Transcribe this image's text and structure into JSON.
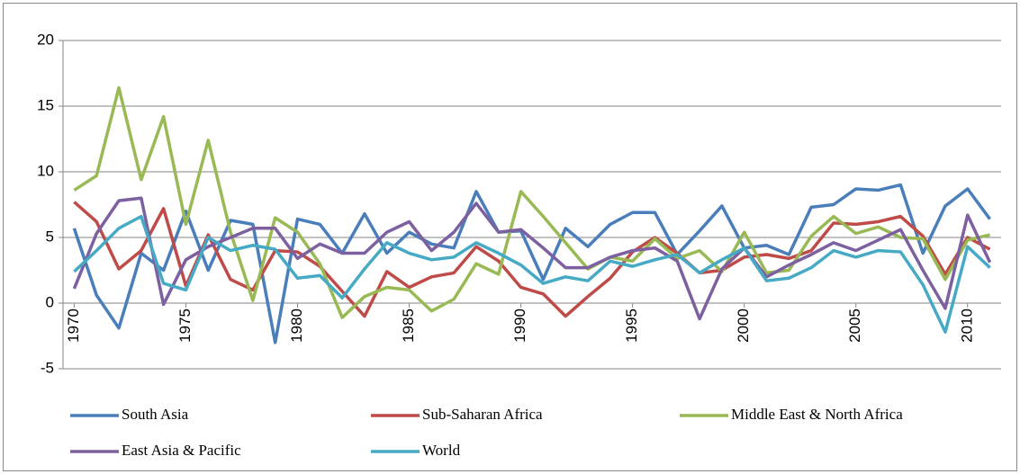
{
  "chart_data": {
    "type": "line",
    "x": [
      1970,
      1971,
      1972,
      1973,
      1974,
      1975,
      1976,
      1977,
      1978,
      1979,
      1980,
      1981,
      1982,
      1983,
      1984,
      1985,
      1986,
      1987,
      1988,
      1989,
      1990,
      1991,
      1992,
      1993,
      1994,
      1995,
      1996,
      1997,
      1998,
      1999,
      2000,
      2001,
      2002,
      2003,
      2004,
      2005,
      2006,
      2007,
      2008,
      2009,
      2010,
      2011
    ],
    "xlim": [
      1969.5,
      2011.5
    ],
    "xticks": [
      1970,
      1975,
      1980,
      1985,
      1990,
      1995,
      2000,
      2005,
      2010
    ],
    "ylim": [
      -5,
      20
    ],
    "yticks": [
      -5,
      0,
      5,
      10,
      15,
      20
    ],
    "grid": true,
    "legend": "bottom",
    "series": [
      {
        "name": "South Asia",
        "color": "#4a7ebb",
        "values": [
          5.7,
          0.6,
          -1.9,
          3.8,
          2.5,
          7.0,
          2.5,
          6.3,
          6.0,
          -3.0,
          6.4,
          6.0,
          3.8,
          6.8,
          3.8,
          5.4,
          4.5,
          4.2,
          8.5,
          5.4,
          5.5,
          1.8,
          5.7,
          4.3,
          6.0,
          6.9,
          6.9,
          3.7,
          5.5,
          7.4,
          4.2,
          4.4,
          3.7,
          7.3,
          7.5,
          8.7,
          8.6,
          9.0,
          3.8,
          7.4,
          8.7,
          6.4
        ]
      },
      {
        "name": "Sub-Saharan Africa",
        "color": "#be4b48",
        "values": [
          7.7,
          6.2,
          2.6,
          4.0,
          7.2,
          1.3,
          5.2,
          1.8,
          1.0,
          4.0,
          3.9,
          2.8,
          0.9,
          -1.0,
          2.4,
          1.2,
          2.0,
          2.3,
          4.3,
          3.2,
          1.2,
          0.7,
          -1.0,
          0.5,
          1.9,
          3.9,
          5.0,
          3.8,
          2.3,
          2.5,
          3.5,
          3.7,
          3.4,
          4.0,
          6.1,
          6.0,
          6.2,
          6.6,
          5.1,
          2.2,
          5.0,
          4.1
        ]
      },
      {
        "name": "Middle East & North Africa",
        "color": "#98b954",
        "values": [
          8.6,
          9.7,
          16.4,
          9.4,
          14.2,
          6.0,
          12.4,
          5.4,
          0.2,
          6.5,
          5.4,
          3.0,
          -1.1,
          0.5,
          1.2,
          1.0,
          -0.6,
          0.3,
          3.0,
          2.2,
          8.5,
          6.6,
          4.6,
          2.6,
          3.5,
          3.2,
          4.9,
          3.4,
          4.0,
          2.4,
          5.4,
          2.3,
          2.5,
          5.1,
          6.6,
          5.3,
          5.8,
          5.0,
          4.9,
          1.8,
          4.8,
          5.2
        ]
      },
      {
        "name": "East Asia & Pacific",
        "color": "#7d60a0",
        "values": [
          1.1,
          5.3,
          7.8,
          8.0,
          -0.1,
          3.3,
          4.3,
          5.0,
          5.7,
          5.7,
          3.4,
          4.5,
          3.8,
          3.8,
          5.4,
          6.2,
          4.0,
          5.4,
          7.6,
          5.4,
          5.6,
          4.2,
          2.7,
          2.7,
          3.5,
          4.0,
          4.2,
          3.2,
          -1.2,
          2.6,
          4.2,
          2.0,
          2.9,
          3.7,
          4.6,
          4.0,
          4.8,
          5.6,
          2.5,
          -0.4,
          6.7,
          3.1
        ]
      },
      {
        "name": "World",
        "color": "#46aac5",
        "values": [
          2.4,
          4.0,
          5.7,
          6.6,
          1.5,
          1.0,
          5.0,
          4.0,
          4.4,
          4.1,
          1.9,
          2.1,
          0.4,
          2.6,
          4.6,
          3.8,
          3.3,
          3.5,
          4.6,
          3.8,
          2.9,
          1.5,
          2.0,
          1.7,
          3.2,
          2.8,
          3.3,
          3.7,
          2.3,
          3.3,
          4.2,
          1.7,
          1.9,
          2.7,
          4.0,
          3.5,
          4.0,
          3.9,
          1.4,
          -2.2,
          4.3,
          2.7
        ]
      }
    ]
  }
}
